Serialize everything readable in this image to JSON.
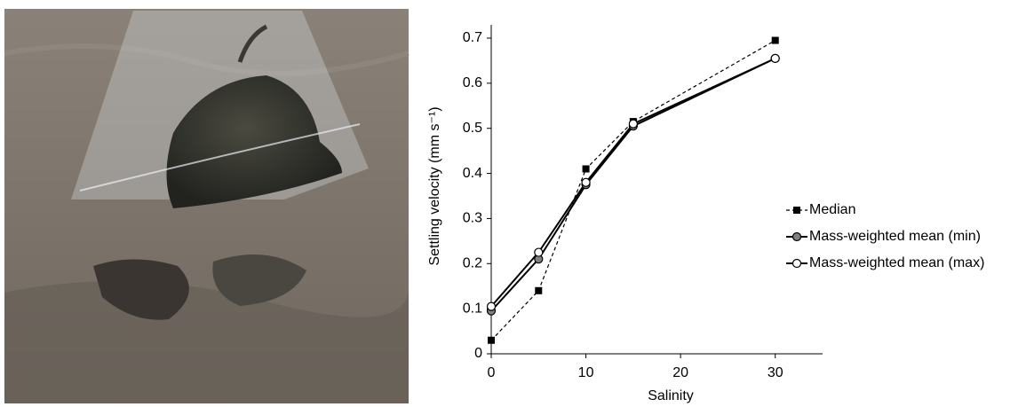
{
  "chart_data": {
    "type": "line",
    "xlabel": "Salinity",
    "ylabel": "Settling velocity (mm s⁻¹)",
    "x": [
      0,
      5,
      10,
      15,
      30
    ],
    "xlim": [
      0,
      35
    ],
    "xticks": [
      0,
      10,
      20,
      30
    ],
    "ylim": [
      0,
      0.7
    ],
    "yticks": [
      0,
      0.1,
      0.2,
      0.3,
      0.4,
      0.5,
      0.6,
      0.7
    ],
    "grid": false,
    "legend": "right",
    "series": [
      {
        "name": "Median",
        "color": "#000000",
        "values": [
          0.03,
          0.14,
          0.41,
          0.515,
          0.695
        ]
      },
      {
        "name": "Mass-weighted mean (min)",
        "color": "#808080",
        "values": [
          0.095,
          0.21,
          0.375,
          0.505,
          0.655
        ]
      },
      {
        "name": "Mass-weighted mean (max)",
        "color": "#ffffff",
        "values": [
          0.105,
          0.225,
          0.38,
          0.51,
          0.655
        ]
      }
    ]
  }
}
